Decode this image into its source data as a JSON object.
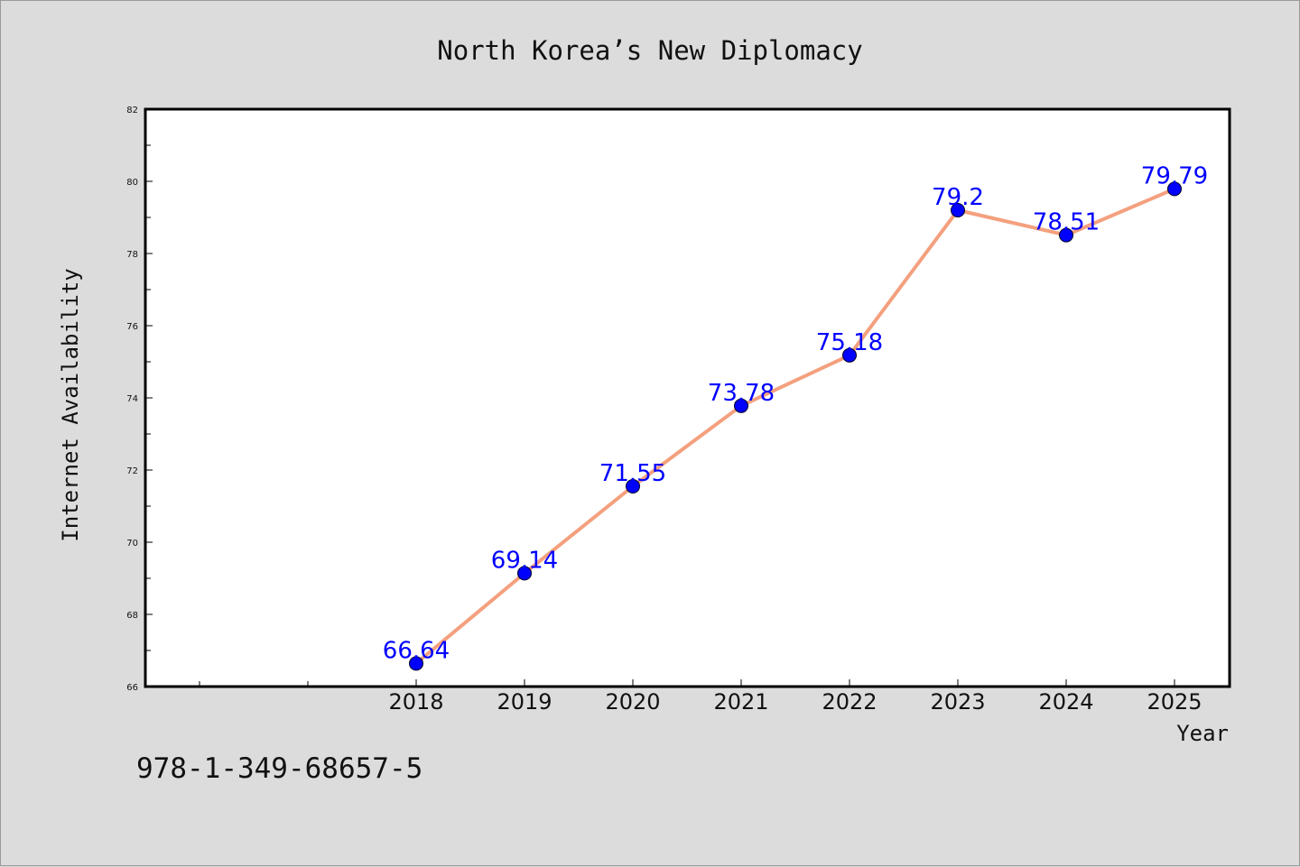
{
  "chart_data": {
    "type": "line",
    "title": "North Korea’s New Diplomacy",
    "xlabel": "Year",
    "ylabel": "Internet Availability",
    "categories": [
      "2018",
      "2019",
      "2020",
      "2021",
      "2022",
      "2023",
      "2024",
      "2025"
    ],
    "series": [
      {
        "values": [
          66.64,
          69.14,
          71.55,
          73.78,
          75.18,
          79.2,
          78.51,
          79.79
        ],
        "labels": [
          "66.64",
          "69.14",
          "71.55",
          "73.78",
          "75.18",
          "79.2",
          "78.51",
          "79.79"
        ],
        "line_color": "#f4a07e",
        "marker_color": "#0000ff"
      }
    ],
    "ylim": [
      66,
      82
    ],
    "yticks": [
      "66",
      "68",
      "70",
      "72",
      "74",
      "76",
      "78",
      "80",
      "82"
    ],
    "grid": false,
    "legend": "none",
    "data_labels": true
  },
  "footer": {
    "isbn": "978-1-349-68657-5"
  },
  "colors": {
    "background": "#dcdcdc",
    "plot_background": "#ffffff",
    "axis": "#000000"
  }
}
